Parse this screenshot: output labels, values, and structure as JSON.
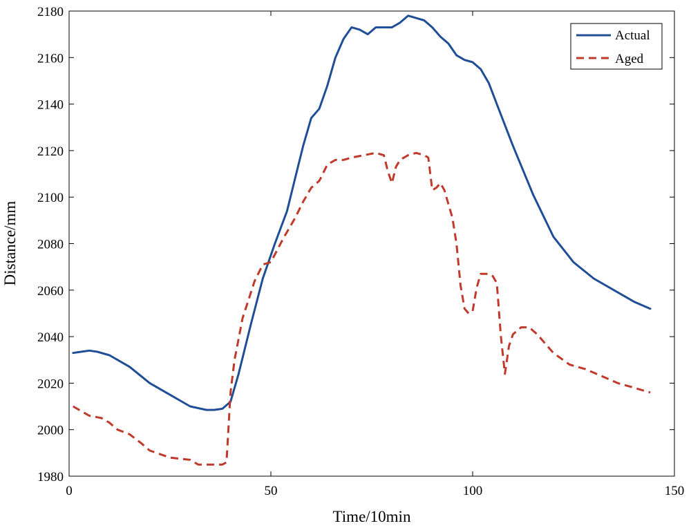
{
  "chart_data": {
    "type": "line",
    "title": "",
    "xlabel": "Time/10min",
    "ylabel": "Distance/mm",
    "xlim": [
      0,
      150
    ],
    "ylim": [
      1980,
      2180
    ],
    "xticks": [
      0,
      50,
      100,
      150
    ],
    "yticks": [
      1980,
      2000,
      2020,
      2040,
      2060,
      2080,
      2100,
      2120,
      2140,
      2160,
      2180
    ],
    "grid": false,
    "legend_position": "top-right",
    "series": [
      {
        "name": "Actual",
        "color": "#1f4e96",
        "style": "solid",
        "x": [
          1,
          3,
          5,
          7,
          10,
          15,
          20,
          25,
          30,
          34,
          36,
          38,
          40,
          42,
          45,
          48,
          51,
          54,
          56,
          58,
          60,
          62,
          64,
          66,
          68,
          70,
          72,
          74,
          76,
          78,
          80,
          82,
          84,
          86,
          88,
          90,
          92,
          94,
          96,
          98,
          100,
          102,
          104,
          106,
          108,
          110,
          115,
          120,
          125,
          130,
          135,
          140,
          144
        ],
        "values": [
          2033,
          2033.5,
          2034,
          2033.5,
          2032,
          2027,
          2020,
          2015,
          2010,
          2008.5,
          2008.5,
          2009,
          2012,
          2024,
          2045,
          2065,
          2080,
          2094,
          2108,
          2122,
          2134,
          2138,
          2148,
          2160,
          2168,
          2173,
          2172,
          2170,
          2173,
          2173,
          2173,
          2175,
          2178,
          2177,
          2176,
          2173,
          2169,
          2166,
          2161,
          2159,
          2158,
          2155,
          2149,
          2140,
          2131,
          2122,
          2101,
          2083,
          2072,
          2065,
          2060,
          2055,
          2052
        ]
      },
      {
        "name": "Aged",
        "color": "#c0392b",
        "style": "dashed",
        "x": [
          1,
          3,
          5,
          8,
          10,
          12,
          15,
          18,
          20,
          25,
          30,
          32,
          35,
          38,
          39,
          40,
          41,
          43,
          46,
          48,
          50,
          53,
          56,
          58,
          60,
          62,
          64,
          66,
          68,
          70,
          73,
          76,
          78,
          79,
          80,
          81,
          82,
          84,
          86,
          88,
          89,
          90,
          91,
          92,
          93,
          95,
          96,
          97,
          98,
          99,
          100,
          101,
          102,
          104,
          105,
          106,
          107,
          108,
          109,
          110,
          112,
          114,
          116,
          118,
          120,
          124,
          128,
          132,
          136,
          140,
          144
        ],
        "values": [
          2010,
          2008,
          2006,
          2005,
          2003,
          2000,
          1998,
          1994,
          1991,
          1988,
          1987,
          1985,
          1985,
          1985,
          1986,
          2016,
          2030,
          2048,
          2064,
          2071,
          2072,
          2082,
          2091,
          2098,
          2104,
          2107,
          2114,
          2116,
          2116,
          2117,
          2118,
          2119,
          2118,
          2111,
          2106,
          2113,
          2116,
          2118,
          2119,
          2118,
          2117,
          2103,
          2104,
          2106,
          2103,
          2091,
          2080,
          2062,
          2052,
          2050,
          2051,
          2061,
          2067,
          2067,
          2066,
          2063,
          2040,
          2024,
          2036,
          2041,
          2044,
          2044,
          2041,
          2037,
          2033,
          2028,
          2026,
          2023,
          2020,
          2018,
          2016
        ]
      }
    ]
  }
}
